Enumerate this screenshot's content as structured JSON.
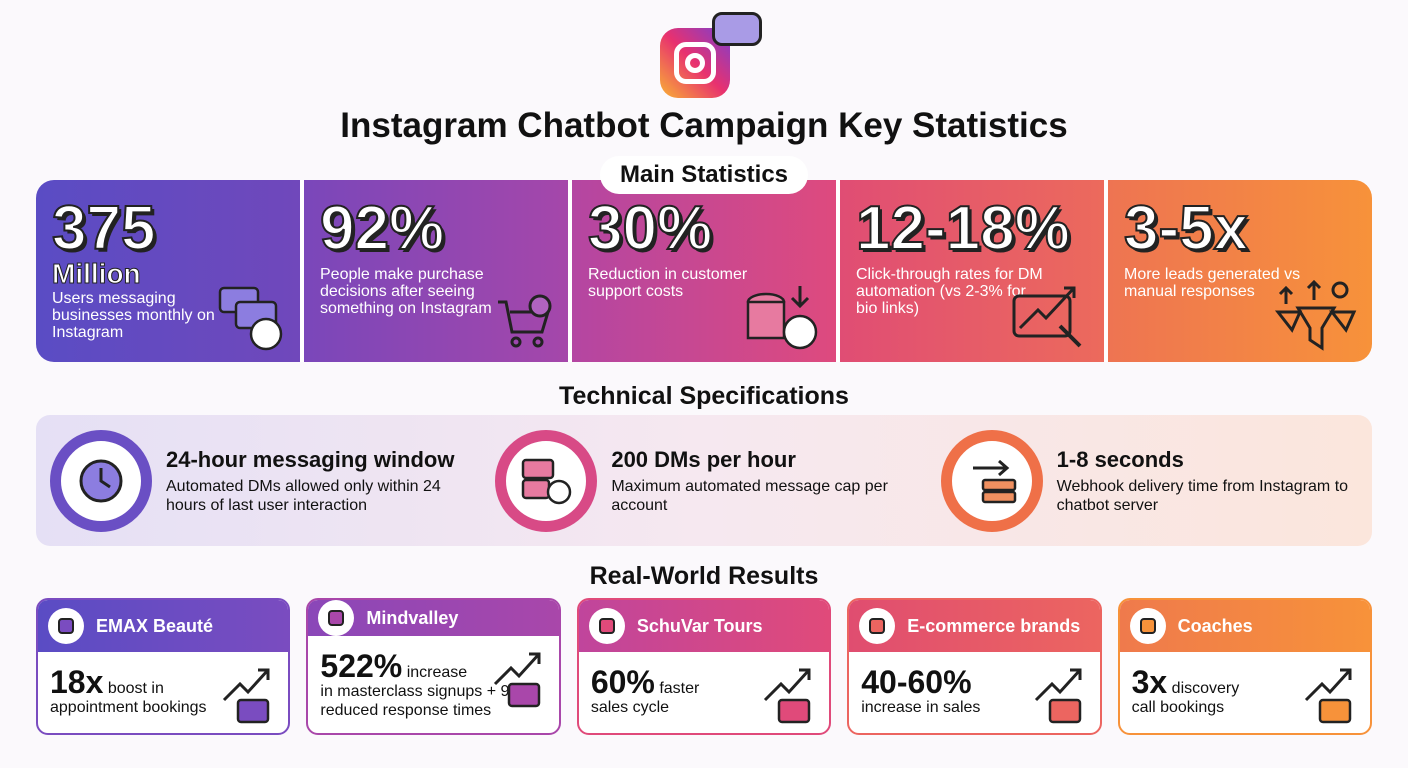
{
  "title": "Instagram Chatbot Campaign Key Statistics",
  "sections": {
    "main": "Main Statistics",
    "tech": "Technical Specifications",
    "results": "Real-World Results"
  },
  "colors": {
    "purple": "#5b4bc4",
    "violet": "#9a47b0",
    "pink": "#df4a7a",
    "coral": "#ec5f62",
    "orange": "#f7923a"
  },
  "main_stats": [
    {
      "value": "375",
      "sub": "Million",
      "desc": "Users messaging businesses monthly on Instagram",
      "icon": "chat-user-icon"
    },
    {
      "value": "92%",
      "desc": "People make purchase decisions after seeing something on Instagram",
      "icon": "shopping-cart-icon"
    },
    {
      "value": "30%",
      "desc": "Reduction in customer support costs",
      "icon": "coins-headset-icon"
    },
    {
      "value": "12-18%",
      "desc": "Click-through rates for DM automation (vs 2-3% for bio links)",
      "icon": "chat-trend-click-icon"
    },
    {
      "value": "3-5x",
      "desc": "More leads generated vs manual responses",
      "icon": "funnel-icon"
    }
  ],
  "tech_specs": [
    {
      "title": "24-hour messaging window",
      "desc": "Automated DMs allowed only within 24 hours of last user interaction",
      "icon": "clock-icon"
    },
    {
      "title": "200 DMs per hour",
      "desc": "Maximum automated message cap per account",
      "icon": "messages-gauge-icon"
    },
    {
      "title": "1-8 seconds",
      "desc": "Webhook delivery time from Instagram to chatbot server",
      "icon": "server-arrow-icon"
    }
  ],
  "results": [
    {
      "name": "EMAX Beauté",
      "value": "18x",
      "text": "boost in",
      "text2": "appointment bookings",
      "icon": "cosmetics-icon"
    },
    {
      "name": "Mindvalley",
      "value": "522%",
      "text": "increase",
      "text2": "in masterclass signups + 99% reduced response times",
      "icon": "brain-icon"
    },
    {
      "name": "SchuVar Tours",
      "value": "60%",
      "text": "faster",
      "text2": "sales cycle",
      "icon": "suitcase-icon"
    },
    {
      "name": "E-commerce brands",
      "value": "40-60%",
      "text": "",
      "text2": "increase in sales",
      "icon": "shopping-bag-icon"
    },
    {
      "name": "Coaches",
      "value": "3x",
      "text": "discovery",
      "text2": "call bookings",
      "icon": "microphone-icon"
    }
  ]
}
